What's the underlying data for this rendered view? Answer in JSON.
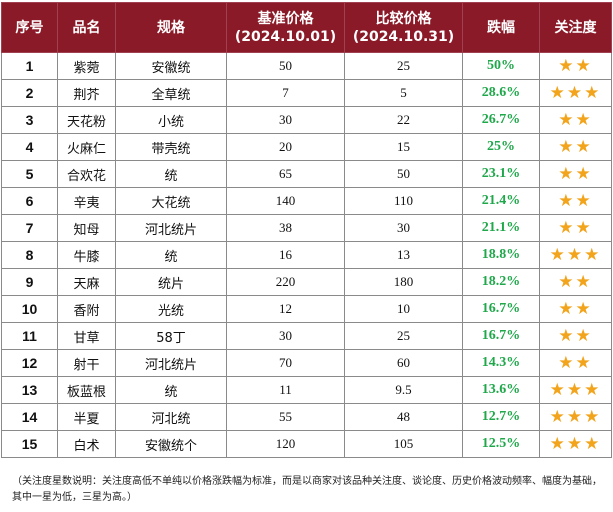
{
  "headers": {
    "seq": "序号",
    "name": "品名",
    "spec": "规格",
    "base": "基准价格",
    "base_date": "(2024.10.01)",
    "cmp": "比较价格",
    "cmp_date": "(2024.10.31)",
    "change": "跌幅",
    "attention": "关注度"
  },
  "rows": [
    {
      "seq": "1",
      "name": "紫菀",
      "spec": "安徽统",
      "base": "50",
      "cmp": "25",
      "change": "50%",
      "stars": "★★"
    },
    {
      "seq": "2",
      "name": "荆芥",
      "spec": "全草统",
      "base": "7",
      "cmp": "5",
      "change": "28.6%",
      "stars": "★★★"
    },
    {
      "seq": "3",
      "name": "天花粉",
      "spec": "小统",
      "base": "30",
      "cmp": "22",
      "change": "26.7%",
      "stars": "★★"
    },
    {
      "seq": "4",
      "name": "火麻仁",
      "spec": "带壳统",
      "base": "20",
      "cmp": "15",
      "change": "25%",
      "stars": "★★"
    },
    {
      "seq": "5",
      "name": "合欢花",
      "spec": "统",
      "base": "65",
      "cmp": "50",
      "change": "23.1%",
      "stars": "★★"
    },
    {
      "seq": "6",
      "name": "辛夷",
      "spec": "大花统",
      "base": "140",
      "cmp": "110",
      "change": "21.4%",
      "stars": "★★"
    },
    {
      "seq": "7",
      "name": "知母",
      "spec": "河北统片",
      "base": "38",
      "cmp": "30",
      "change": "21.1%",
      "stars": "★★"
    },
    {
      "seq": "8",
      "name": "牛膝",
      "spec": "统",
      "base": "16",
      "cmp": "13",
      "change": "18.8%",
      "stars": "★★★"
    },
    {
      "seq": "9",
      "name": "天麻",
      "spec": "统片",
      "base": "220",
      "cmp": "180",
      "change": "18.2%",
      "stars": "★★"
    },
    {
      "seq": "10",
      "name": "香附",
      "spec": "光统",
      "base": "12",
      "cmp": "10",
      "change": "16.7%",
      "stars": "★★"
    },
    {
      "seq": "11",
      "name": "甘草",
      "spec": "58丁",
      "base": "30",
      "cmp": "25",
      "change": "16.7%",
      "stars": "★★"
    },
    {
      "seq": "12",
      "name": "射干",
      "spec": "河北统片",
      "base": "70",
      "cmp": "60",
      "change": "14.3%",
      "stars": "★★"
    },
    {
      "seq": "13",
      "name": "板蓝根",
      "spec": "统",
      "base": "11",
      "cmp": "9.5",
      "change": "13.6%",
      "stars": "★★★"
    },
    {
      "seq": "14",
      "name": "半夏",
      "spec": "河北统",
      "base": "55",
      "cmp": "48",
      "change": "12.7%",
      "stars": "★★★"
    },
    {
      "seq": "15",
      "name": "白术",
      "spec": "安徽统个",
      "base": "120",
      "cmp": "105",
      "change": "12.5%",
      "stars": "★★★"
    }
  ],
  "note": "（关注度星数说明：关注度高低不单纯以价格涨跌幅为标准，而是以商家对该品种关注度、谈论度、历史价格波动频率、幅度为基础，其中一星为低，三星为高。）",
  "colors": {
    "header_bg": "#8b1a28",
    "change_green": "#1fa84a",
    "star_gold": "#f2a41c"
  }
}
